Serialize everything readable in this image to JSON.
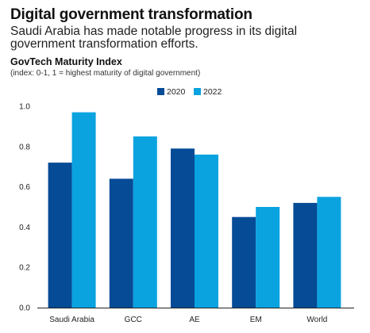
{
  "header": {
    "title": "Digital government transformation",
    "subtitle": "Saudi Arabia has made notable progress in its digital government transformation efforts.",
    "chart_title": "GovTech Maturity Index",
    "chart_note": "(index: 0-1, 1 = highest maturity of digital government)"
  },
  "colors": {
    "series_2020": "#054b96",
    "series_2022": "#0aa3e0",
    "axis": "#222222"
  },
  "chart_data": {
    "type": "bar",
    "title": "GovTech Maturity Index",
    "subtitle": "(index: 0-1, 1 = highest maturity of digital government)",
    "xlabel": "",
    "ylabel": "",
    "categories": [
      "Saudi Arabia",
      "GCC",
      "AE",
      "EM",
      "World"
    ],
    "series": [
      {
        "name": "2020",
        "values": [
          0.72,
          0.64,
          0.79,
          0.45,
          0.52
        ]
      },
      {
        "name": "2022",
        "values": [
          0.97,
          0.85,
          0.76,
          0.5,
          0.55
        ]
      }
    ],
    "ylim": [
      0,
      1.0
    ],
    "yticks": [
      "0.0",
      "0.2",
      "0.4",
      "0.6",
      "0.8",
      "1.0"
    ],
    "grid": false,
    "legend_position": "top-right"
  }
}
